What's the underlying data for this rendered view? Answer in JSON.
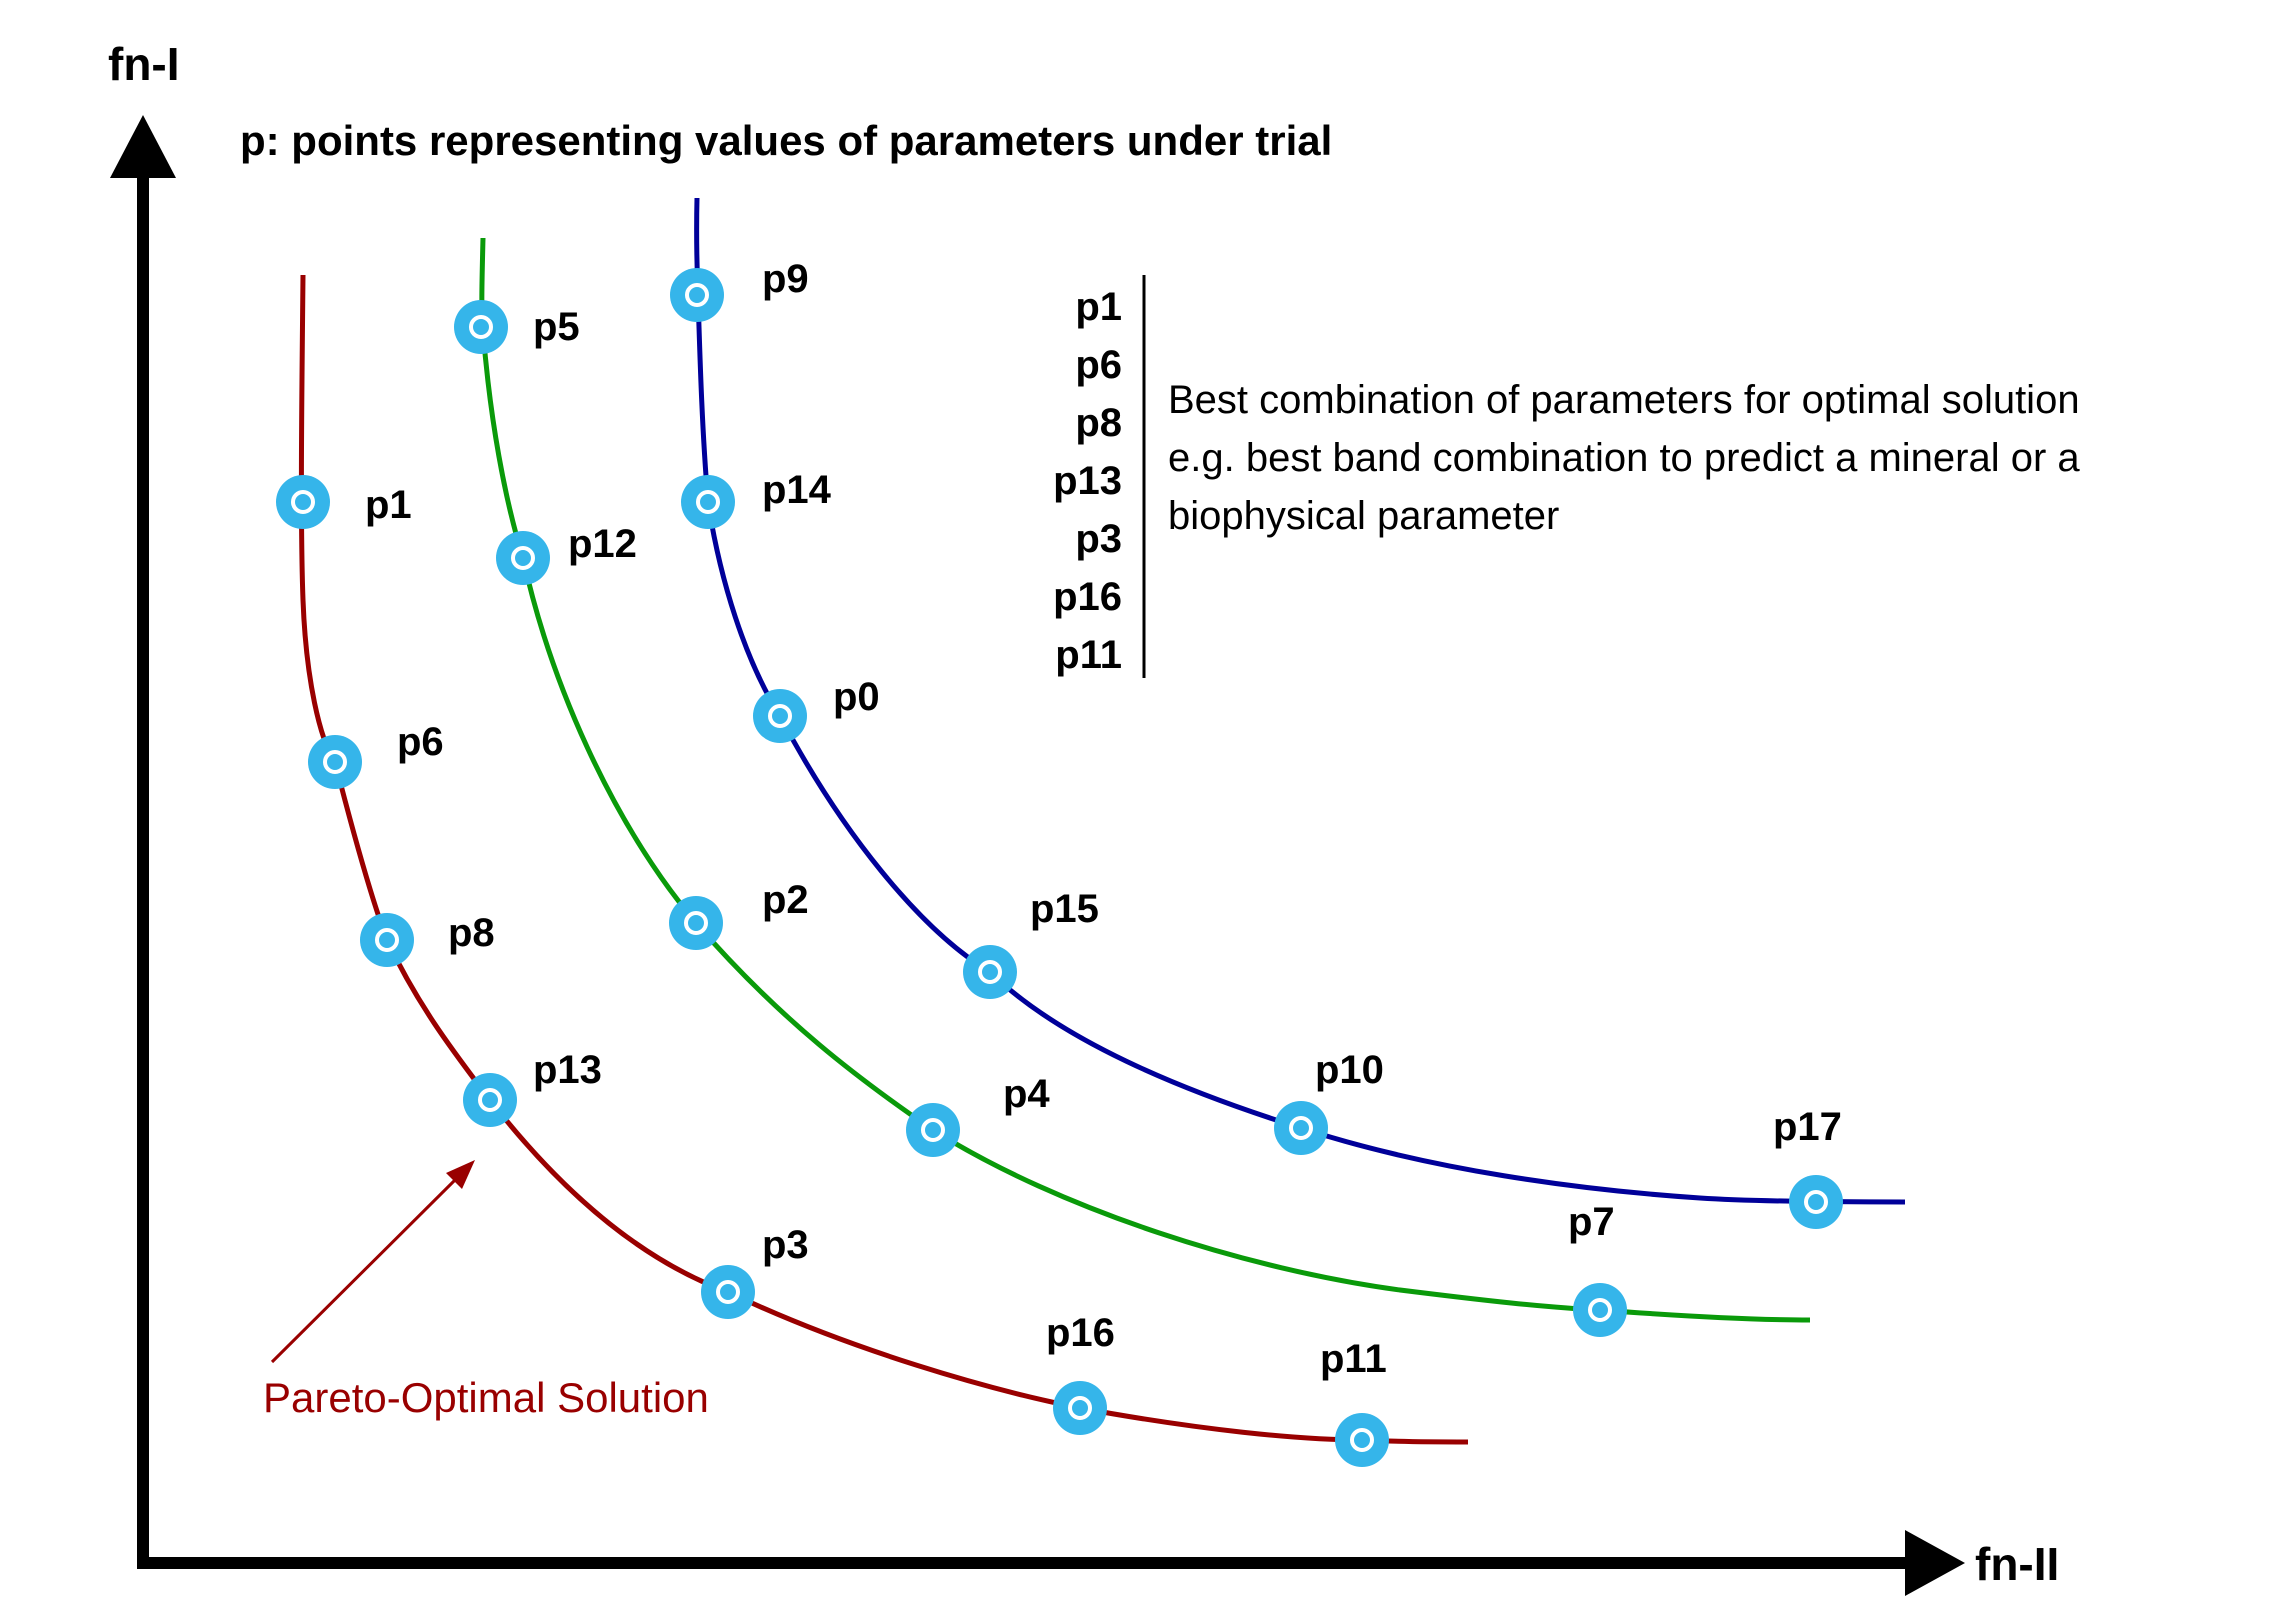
{
  "axes": {
    "y_label": "fn-I",
    "x_label": "fn-II"
  },
  "subtitle": "p: points representing values of parameters under trial",
  "colors": {
    "red_front": "#990000",
    "green_front": "#0a9a0a",
    "blue_front": "#000099",
    "point_fill": "#35b5ea",
    "pareto_text": "#990000"
  },
  "fronts": [
    {
      "id": "red",
      "points": [
        {
          "label": "p1"
        },
        {
          "label": "p6"
        },
        {
          "label": "p8"
        },
        {
          "label": "p13"
        },
        {
          "label": "p3"
        },
        {
          "label": "p16"
        },
        {
          "label": "p11"
        }
      ]
    },
    {
      "id": "green",
      "points": [
        {
          "label": "p5"
        },
        {
          "label": "p12"
        },
        {
          "label": "p2"
        },
        {
          "label": "p4"
        },
        {
          "label": "p7"
        }
      ]
    },
    {
      "id": "blue",
      "points": [
        {
          "label": "p9"
        },
        {
          "label": "p14"
        },
        {
          "label": "p0"
        },
        {
          "label": "p15"
        },
        {
          "label": "p10"
        },
        {
          "label": "p17"
        }
      ]
    }
  ],
  "best_list": [
    "p1",
    "p6",
    "p8",
    "p13",
    "p3",
    "p16",
    "p11"
  ],
  "note_lines": [
    "Best combination of parameters for optimal solution",
    "e.g. best band combination to predict a mineral or a",
    "biophysical parameter"
  ],
  "pareto_label": "Pareto-Optimal Solution"
}
